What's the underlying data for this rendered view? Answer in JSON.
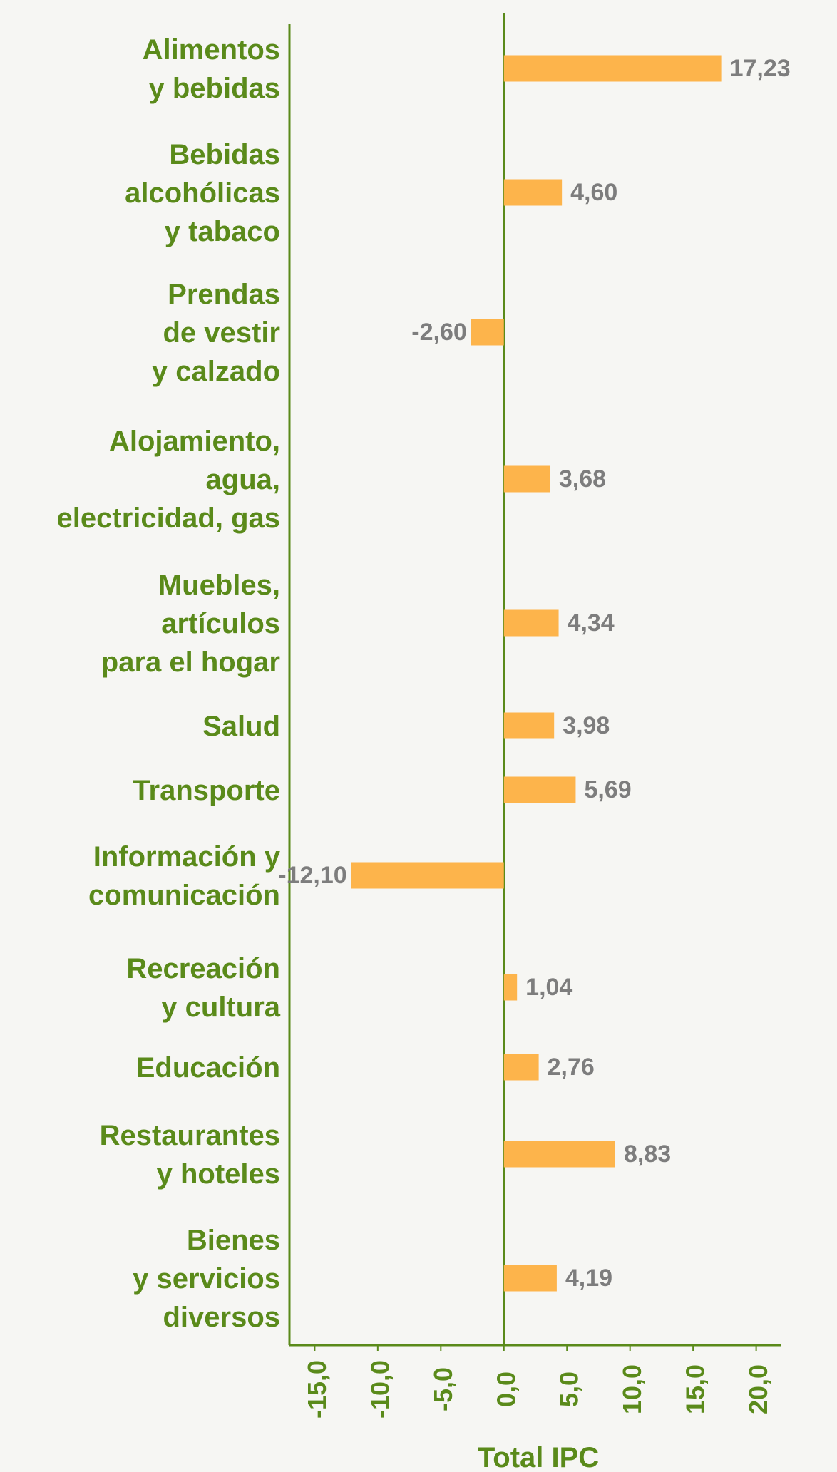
{
  "chart_data": {
    "type": "barh",
    "categories": [
      [
        "Alimentos",
        "y bebidas"
      ],
      [
        "Bebidas",
        "alcohólicas",
        "y tabaco"
      ],
      [
        "Prendas",
        "de vestir",
        "y calzado"
      ],
      [
        "Alojamiento,",
        "agua,",
        "electricidad, gas"
      ],
      [
        "Muebles,",
        "artículos",
        "para el hogar"
      ],
      [
        "Salud"
      ],
      [
        "Transporte"
      ],
      [
        "Información y",
        "comunicación"
      ],
      [
        "Recreación",
        "y cultura"
      ],
      [
        "Educación"
      ],
      [
        "Restaurantes",
        "y hoteles"
      ],
      [
        "Bienes",
        "y servicios",
        "diversos"
      ]
    ],
    "values": [
      17.23,
      4.6,
      -2.6,
      3.68,
      4.34,
      3.98,
      5.69,
      -12.1,
      1.04,
      2.76,
      8.83,
      4.19
    ],
    "value_labels": [
      "17,23",
      "4,60",
      "-2,60",
      "3,68",
      "4,34",
      "3,98",
      "5,69",
      "-12,10",
      "1,04",
      "2,76",
      "8,83",
      "4,19"
    ],
    "color": "#fdb44b",
    "xlim": [
      -17,
      22
    ],
    "xticks": [
      {
        "value": -15,
        "label": "-15,0"
      },
      {
        "value": -10,
        "label": "-10,0"
      },
      {
        "value": -5,
        "label": "-5,0"
      },
      {
        "value": 0,
        "label": "0,0"
      },
      {
        "value": 5,
        "label": "5,0"
      },
      {
        "value": 10,
        "label": "10,0"
      },
      {
        "value": 15,
        "label": "15,0"
      },
      {
        "value": 20,
        "label": "20,0"
      }
    ],
    "xlabel": "Total IPC"
  }
}
